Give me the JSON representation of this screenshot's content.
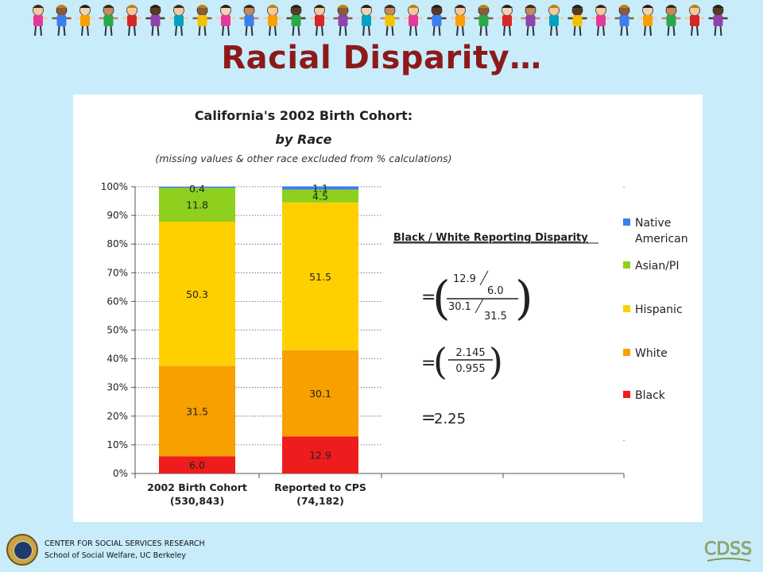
{
  "slide": {
    "title": "Racial Disparity…"
  },
  "chart_data": {
    "type": "bar",
    "stacked": true,
    "title": "California's 2002 Birth Cohort:",
    "subtitle": "by Race",
    "note": "(missing values & other race excluded from % calculations)",
    "categories": [
      [
        "2002 Birth Cohort",
        "(530,843)"
      ],
      [
        "Reported to CPS",
        "(74,182)"
      ]
    ],
    "ylim": [
      0,
      100
    ],
    "yticks": [
      0,
      10,
      20,
      30,
      40,
      50,
      60,
      70,
      80,
      90,
      100
    ],
    "ytick_suffix": "%",
    "grid": "horizontal dotted",
    "legend_position": "right",
    "series": [
      {
        "name": "Black",
        "color": "#ee1c1c",
        "values": [
          6.0,
          12.9
        ],
        "labels": [
          "6.0",
          "12.9"
        ]
      },
      {
        "name": "White",
        "color": "#f7a000",
        "values": [
          31.5,
          30.1
        ],
        "labels": [
          "31.5",
          "30.1"
        ]
      },
      {
        "name": "Hispanic",
        "color": "#ffd000",
        "values": [
          50.3,
          51.5
        ],
        "labels": [
          "50.3",
          "51.5"
        ]
      },
      {
        "name": "Asian/PI",
        "color": "#8fcf1e",
        "values": [
          11.8,
          4.5
        ],
        "labels": [
          "11.8",
          "4.5"
        ]
      },
      {
        "name": "Native American",
        "color": "#3a7ff0",
        "values": [
          0.4,
          1.1
        ],
        "labels": [
          "0.4",
          "1.1"
        ]
      }
    ],
    "legend_order": [
      "Native American",
      "Asian/PI",
      "Hispanic",
      "White",
      "Black"
    ]
  },
  "disparity": {
    "heading": "Black / White Reporting Disparity",
    "eq1": {
      "num_a": "12.9",
      "num_b": "6.0",
      "den_a": "30.1",
      "den_b": "31.5"
    },
    "eq2": {
      "num": "2.145",
      "den": "0.955"
    },
    "result": "2.25"
  },
  "footer": {
    "line1": "CENTER FOR SOCIAL SERVICES RESEARCH",
    "line2": "School of Social Welfare, UC Berkeley",
    "logo_text": "CDSS"
  }
}
